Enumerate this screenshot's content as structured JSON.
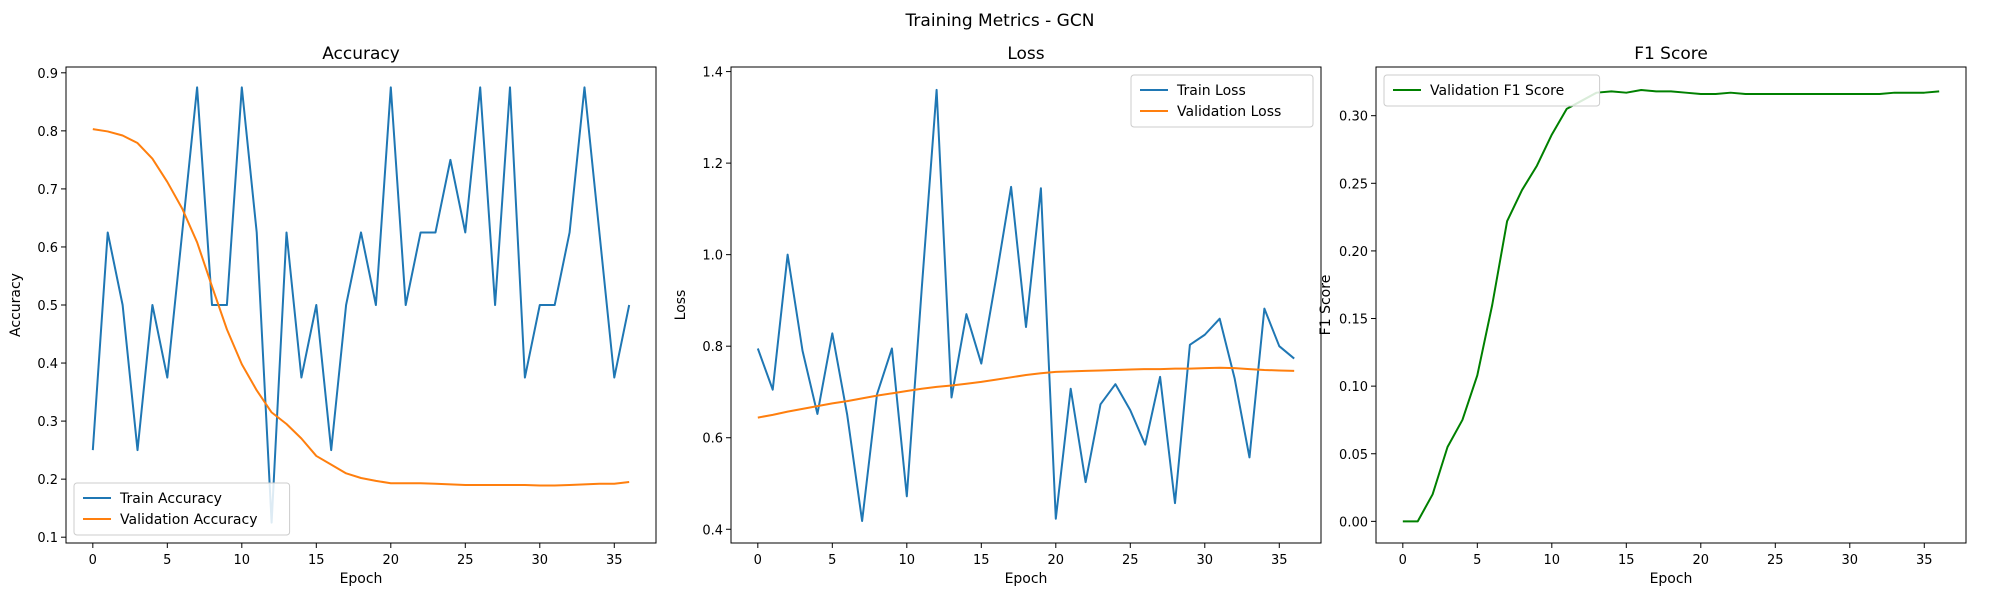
{
  "suptitle": "Training Metrics - GCN",
  "colors": {
    "blue": "#1f77b4",
    "orange": "#ff7f0e",
    "green": "#008000"
  },
  "chart_data": [
    {
      "type": "line",
      "title": "Accuracy",
      "xlabel": "Epoch",
      "ylabel": "Accuracy",
      "x": [
        0,
        1,
        2,
        3,
        4,
        5,
        6,
        7,
        8,
        9,
        10,
        11,
        12,
        13,
        14,
        15,
        16,
        17,
        18,
        19,
        20,
        21,
        22,
        23,
        24,
        25,
        26,
        27,
        28,
        29,
        30,
        31,
        32,
        33,
        34,
        35,
        36
      ],
      "xlim": [
        -1.8,
        37.8
      ],
      "ylim": [
        0.09,
        0.91
      ],
      "xticks": [
        0,
        5,
        10,
        15,
        20,
        25,
        30,
        35
      ],
      "yticks": [
        0.1,
        0.2,
        0.3,
        0.4,
        0.5,
        0.6,
        0.7,
        0.8,
        0.9
      ],
      "legend_position": "lower-left",
      "series": [
        {
          "name": "Train Accuracy",
          "color": "#1f77b4",
          "values": [
            0.25,
            0.625,
            0.5,
            0.25,
            0.5,
            0.375,
            0.625,
            0.875,
            0.5,
            0.5,
            0.875,
            0.625,
            0.125,
            0.625,
            0.375,
            0.5,
            0.25,
            0.5,
            0.625,
            0.5,
            0.875,
            0.5,
            0.625,
            0.625,
            0.75,
            0.625,
            0.875,
            0.5,
            0.875,
            0.375,
            0.5,
            0.5,
            0.625,
            0.875,
            0.625,
            0.375,
            0.5
          ]
        },
        {
          "name": "Validation Accuracy",
          "color": "#ff7f0e",
          "values": [
            0.803,
            0.799,
            0.792,
            0.779,
            0.752,
            0.712,
            0.666,
            0.608,
            0.532,
            0.458,
            0.398,
            0.353,
            0.315,
            0.295,
            0.27,
            0.24,
            0.225,
            0.21,
            0.202,
            0.197,
            0.193,
            0.193,
            0.193,
            0.192,
            0.191,
            0.19,
            0.19,
            0.19,
            0.19,
            0.19,
            0.189,
            0.189,
            0.19,
            0.191,
            0.192,
            0.192,
            0.195
          ]
        }
      ]
    },
    {
      "type": "line",
      "title": "Loss",
      "xlabel": "Epoch",
      "ylabel": "Loss",
      "x": [
        0,
        1,
        2,
        3,
        4,
        5,
        6,
        7,
        8,
        9,
        10,
        11,
        12,
        13,
        14,
        15,
        16,
        17,
        18,
        19,
        20,
        21,
        22,
        23,
        24,
        25,
        26,
        27,
        28,
        29,
        30,
        31,
        32,
        33,
        34,
        35,
        36
      ],
      "xlim": [
        -1.8,
        37.8
      ],
      "ylim": [
        0.37,
        1.41
      ],
      "xticks": [
        0,
        5,
        10,
        15,
        20,
        25,
        30,
        35
      ],
      "yticks": [
        0.4,
        0.6,
        0.8,
        1.0,
        1.2,
        1.4
      ],
      "yticklabels": [
        "0.4",
        "0.6",
        "0.8",
        "1.0",
        "1.2",
        "1.4"
      ],
      "legend_position": "upper-right",
      "series": [
        {
          "name": "Train Loss",
          "color": "#1f77b4",
          "values": [
            0.795,
            0.705,
            1.0,
            0.79,
            0.652,
            0.828,
            0.65,
            0.418,
            0.695,
            0.795,
            0.472,
            0.925,
            1.36,
            0.688,
            0.87,
            0.762,
            0.95,
            1.148,
            0.842,
            1.145,
            0.423,
            0.707,
            0.503,
            0.673,
            0.717,
            0.66,
            0.585,
            0.733,
            0.457,
            0.803,
            0.825,
            0.86,
            0.73,
            0.557,
            0.882,
            0.8,
            0.773
          ]
        },
        {
          "name": "Validation Loss",
          "color": "#ff7f0e",
          "values": [
            0.644,
            0.65,
            0.657,
            0.663,
            0.669,
            0.675,
            0.68,
            0.686,
            0.692,
            0.697,
            0.702,
            0.707,
            0.711,
            0.714,
            0.718,
            0.722,
            0.727,
            0.732,
            0.737,
            0.741,
            0.744,
            0.745,
            0.746,
            0.747,
            0.748,
            0.749,
            0.75,
            0.75,
            0.751,
            0.751,
            0.752,
            0.753,
            0.752,
            0.75,
            0.748,
            0.747,
            0.746
          ]
        }
      ]
    },
    {
      "type": "line",
      "title": "F1 Score",
      "xlabel": "Epoch",
      "ylabel": "F1 Score",
      "x": [
        0,
        1,
        2,
        3,
        4,
        5,
        6,
        7,
        8,
        9,
        10,
        11,
        12,
        13,
        14,
        15,
        16,
        17,
        18,
        19,
        20,
        21,
        22,
        23,
        24,
        25,
        26,
        27,
        28,
        29,
        30,
        31,
        32,
        33,
        34,
        35,
        36
      ],
      "xlim": [
        -1.8,
        37.8
      ],
      "ylim": [
        -0.016,
        0.336
      ],
      "xticks": [
        0,
        5,
        10,
        15,
        20,
        25,
        30,
        35
      ],
      "yticks": [
        0.0,
        0.05,
        0.1,
        0.15,
        0.2,
        0.25,
        0.3
      ],
      "yticklabels": [
        "0.00",
        "0.05",
        "0.10",
        "0.15",
        "0.20",
        "0.25",
        "0.30"
      ],
      "legend_position": "upper-left",
      "series": [
        {
          "name": "Validation F1 Score",
          "color": "#008000",
          "values": [
            0.0,
            0.0,
            0.02,
            0.055,
            0.075,
            0.108,
            0.16,
            0.222,
            0.245,
            0.263,
            0.286,
            0.305,
            0.311,
            0.317,
            0.318,
            0.317,
            0.319,
            0.318,
            0.318,
            0.317,
            0.316,
            0.316,
            0.317,
            0.316,
            0.316,
            0.316,
            0.316,
            0.316,
            0.316,
            0.316,
            0.316,
            0.316,
            0.316,
            0.317,
            0.317,
            0.317,
            0.318
          ]
        }
      ]
    }
  ]
}
